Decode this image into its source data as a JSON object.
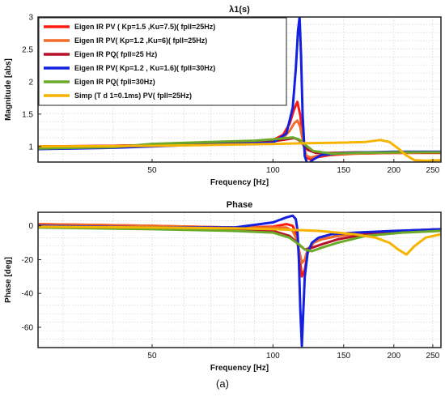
{
  "caption": "(a)",
  "chart_data": [
    {
      "type": "line",
      "title": "λ1(s)",
      "xlabel": "Frequency [Hz]",
      "ylabel": "Magnitude [abs]",
      "xscale": "log",
      "xlim": [
        26,
        262
      ],
      "ylim": [
        0.76,
        3.0
      ],
      "xticks": [
        50,
        100,
        150,
        200,
        250
      ],
      "xtick_labels": [
        "50",
        "100",
        "150",
        "200",
        "250"
      ],
      "yticks": [
        1,
        1.5,
        2,
        2.5,
        3
      ],
      "ytick_labels": [
        "1",
        "1.5",
        "2",
        "2.5",
        "3"
      ],
      "grid": true,
      "legend_position": "top-left",
      "series": [
        {
          "name": "Eigen IR PV ( Kp=1.5 ,Ku=7.5)( fpll=25Hz)",
          "color": "#ff1a10",
          "x": [
            26,
            40,
            50,
            70,
            90,
            100,
            106,
            110,
            113,
            115,
            117,
            119,
            121,
            124,
            130,
            140,
            160,
            200,
            240,
            262
          ],
          "y": [
            0.99,
            1.01,
            1.02,
            1.04,
            1.07,
            1.1,
            1.18,
            1.35,
            1.58,
            1.69,
            1.48,
            1.05,
            0.83,
            0.8,
            0.84,
            0.87,
            0.89,
            0.9,
            0.9,
            0.9
          ]
        },
        {
          "name": "Eigen IR PV( Kp=1.2 ,Ku=6)( fpll=25Hz)",
          "color": "#f26a2a",
          "x": [
            26,
            40,
            50,
            70,
            90,
            100,
            106,
            110,
            113,
            115,
            117,
            119,
            121,
            124,
            130,
            140,
            160,
            200,
            240,
            262
          ],
          "y": [
            1.0,
            1.01,
            1.02,
            1.04,
            1.06,
            1.08,
            1.13,
            1.24,
            1.36,
            1.4,
            1.3,
            1.04,
            0.86,
            0.83,
            0.86,
            0.88,
            0.89,
            0.9,
            0.91,
            0.91
          ]
        },
        {
          "name": "Eigen IR PQ( fpll=25 Hz)",
          "color": "#b8102a",
          "x": [
            26,
            40,
            50,
            70,
            90,
            100,
            108,
            113,
            116,
            119,
            122,
            128,
            140,
            160,
            200,
            240,
            262
          ],
          "y": [
            1.0,
            1.01,
            1.02,
            1.04,
            1.06,
            1.08,
            1.11,
            1.13,
            1.1,
            1.03,
            0.95,
            0.9,
            0.9,
            0.91,
            0.91,
            0.91,
            0.91
          ]
        },
        {
          "name": "Eigen  IR  PV( Kp=1.2 , Ku=1.6)( fpll=30Hz)",
          "color": "#1420e0",
          "x": [
            26,
            40,
            50,
            60,
            80,
            100,
            108,
            112,
            114,
            115.5,
            116.5,
            117.5,
            118.5,
            120,
            122,
            126,
            132,
            150,
            200,
            262
          ],
          "y": [
            0.96,
            0.98,
            1.0,
            1.02,
            1.04,
            1.06,
            1.2,
            1.6,
            2.2,
            2.8,
            3.0,
            2.4,
            1.5,
            0.85,
            0.72,
            0.8,
            0.87,
            0.9,
            0.92,
            0.92
          ]
        },
        {
          "name": "Eigen  IR  PQ( fpll=30Hz)",
          "color": "#6aaa28",
          "x": [
            26,
            40,
            50,
            70,
            90,
            100,
            108,
            112,
            116,
            120,
            126,
            140,
            160,
            200,
            240,
            262
          ],
          "y": [
            0.97,
            0.99,
            1.04,
            1.07,
            1.09,
            1.11,
            1.13,
            1.14,
            1.11,
            1.03,
            0.93,
            0.89,
            0.9,
            0.91,
            0.91,
            0.91
          ]
        },
        {
          "name": "Simp (T d 1=0.1ms) PV( fpll=25Hz)",
          "color": "#f6b400",
          "x": [
            26,
            50,
            80,
            100,
            120,
            150,
            170,
            185,
            195,
            205,
            215,
            225,
            240,
            262
          ],
          "y": [
            1.0,
            1.01,
            1.03,
            1.04,
            1.05,
            1.06,
            1.07,
            1.1,
            1.07,
            0.97,
            0.86,
            0.79,
            0.78,
            0.79
          ]
        }
      ]
    },
    {
      "type": "line",
      "title": "Phase",
      "xlabel": "Frequency [Hz]",
      "ylabel": "Phase [deg]",
      "xscale": "log",
      "xlim": [
        26,
        262
      ],
      "ylim": [
        -72,
        8
      ],
      "xticks": [
        50,
        100,
        150,
        200,
        250
      ],
      "xtick_labels": [
        "50",
        "100",
        "150",
        "200",
        "250"
      ],
      "yticks": [
        0,
        -20,
        -40,
        -60
      ],
      "ytick_labels": [
        "0",
        "-20",
        "-40",
        "-60"
      ],
      "grid": true,
      "series": [
        {
          "name": "Eigen IR PV ( Kp=1.5 ,Ku=7.5)( fpll=25Hz)",
          "color": "#ff1a10",
          "x": [
            26,
            50,
            80,
            100,
            108,
            112,
            114,
            116,
            118,
            120,
            122,
            126,
            132,
            145,
            170,
            210,
            262
          ],
          "y": [
            1,
            0,
            -1,
            -0.5,
            1,
            0,
            -4,
            -15,
            -30,
            -26,
            -16,
            -10,
            -8,
            -6,
            -4,
            -3,
            -2
          ]
        },
        {
          "name": "Eigen IR PV( Kp=1.2 ,Ku=6)( fpll=25Hz)",
          "color": "#f26a2a",
          "x": [
            26,
            50,
            80,
            100,
            108,
            112,
            114,
            116,
            118,
            120,
            122,
            126,
            132,
            145,
            170,
            210,
            262
          ],
          "y": [
            1,
            0,
            -1,
            -1,
            -1,
            -3,
            -7,
            -14,
            -22,
            -20,
            -14,
            -10,
            -8,
            -6,
            -4,
            -3,
            -2
          ]
        },
        {
          "name": "Eigen IR PQ( fpll=25 Hz)",
          "color": "#b8102a",
          "x": [
            26,
            50,
            80,
            100,
            110,
            116,
            120,
            125,
            132,
            145,
            170,
            210,
            262
          ],
          "y": [
            0,
            -1,
            -2,
            -3,
            -6,
            -11,
            -14,
            -13,
            -11,
            -8,
            -5,
            -3,
            -2
          ]
        },
        {
          "name": "Eigen  IR  PV( Kp=1.2 , Ku=1.6)( fpll=30Hz)",
          "color": "#1420e0",
          "x": [
            26,
            50,
            80,
            100,
            108,
            112,
            114,
            115,
            116,
            117,
            118,
            119,
            120,
            122,
            125,
            130,
            140,
            160,
            200,
            262
          ],
          "y": [
            0,
            -1,
            -1,
            2,
            5,
            6,
            4,
            -2,
            -20,
            -50,
            -71,
            -50,
            -30,
            -16,
            -10,
            -7,
            -5,
            -4,
            -3,
            -2
          ]
        },
        {
          "name": "Eigen  IR  PQ( fpll=30Hz)",
          "color": "#6aaa28",
          "x": [
            26,
            50,
            80,
            100,
            110,
            116,
            120,
            125,
            132,
            145,
            170,
            210,
            262
          ],
          "y": [
            -1,
            -2,
            -3,
            -4,
            -7,
            -11,
            -14,
            -15,
            -13,
            -10,
            -6,
            -4,
            -3
          ]
        },
        {
          "name": "Simp (T d 1=0.1ms) PV( fpll=25Hz)",
          "color": "#f6b400",
          "x": [
            26,
            50,
            80,
            100,
            130,
            160,
            180,
            195,
            205,
            215,
            225,
            240,
            262
          ],
          "y": [
            -0.5,
            -1,
            -1.5,
            -2,
            -3,
            -5,
            -7,
            -10,
            -14,
            -17,
            -12,
            -7,
            -5
          ]
        }
      ]
    }
  ]
}
